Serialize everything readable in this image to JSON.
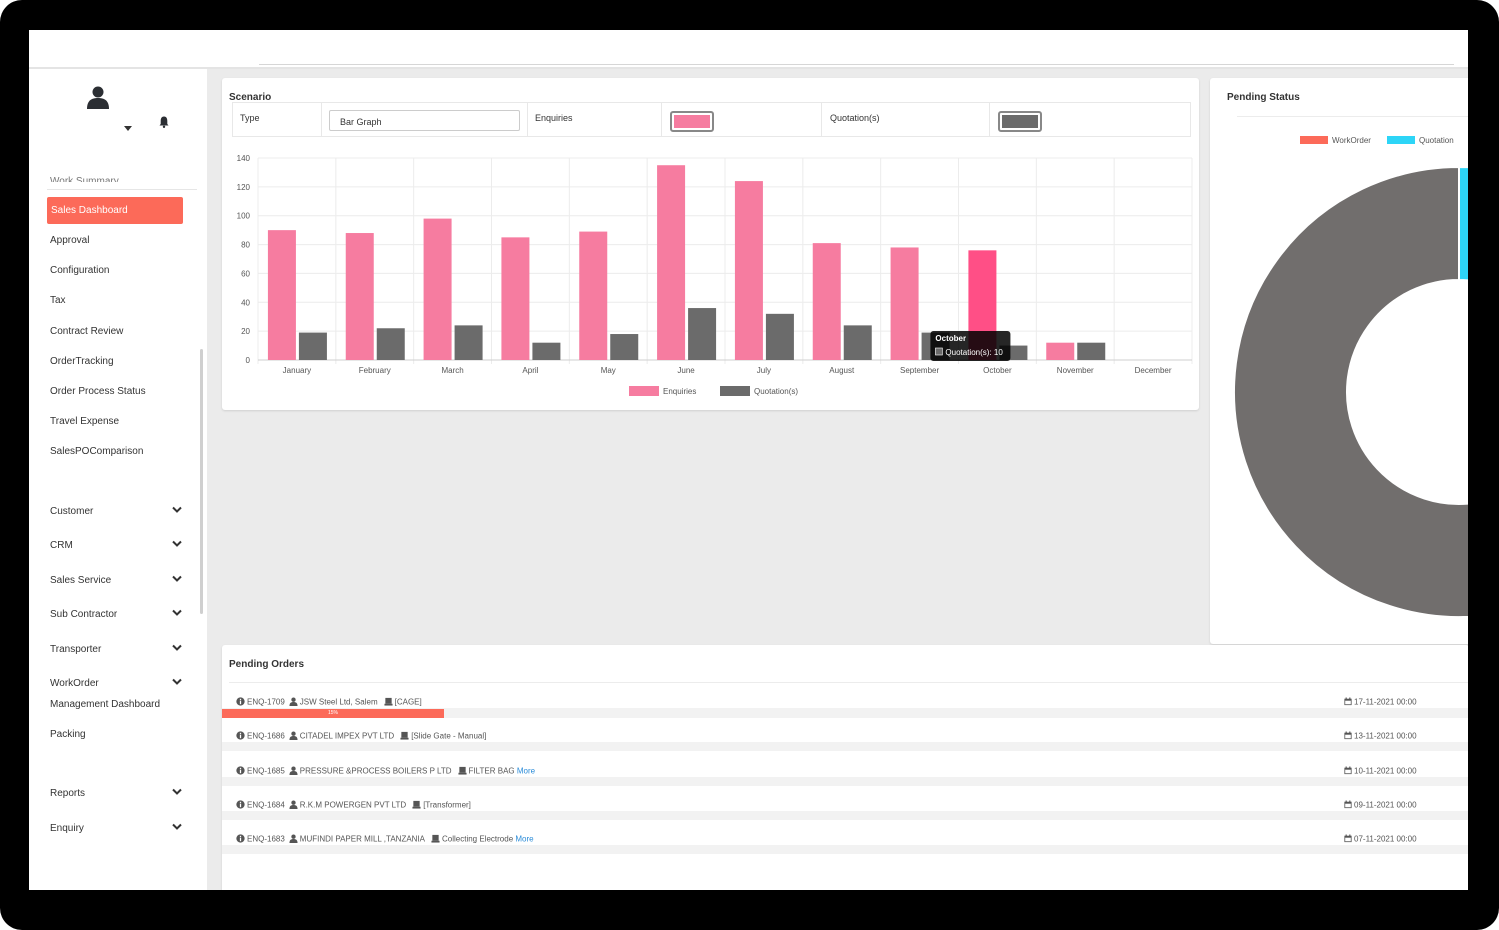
{
  "sidebar": {
    "cut_item": "Work Summary",
    "active_item": "Sales Dashboard",
    "items": [
      "Approval",
      "Configuration",
      "Tax",
      "Contract Review",
      "OrderTracking",
      "Order Process Status",
      "Travel Expense",
      "SalesPOComparison"
    ],
    "groups": [
      "Customer",
      "CRM",
      "Sales Service",
      "Sub Contractor",
      "Transporter",
      "WorkOrder"
    ],
    "workorder_children": [
      "Management Dashboard",
      "Packing"
    ],
    "groups2": [
      "Reports",
      "Enquiry"
    ]
  },
  "scenario": {
    "title": "Scenario",
    "type_label": "Type",
    "type_value": "Bar Graph",
    "enquiries_label": "Enquiries",
    "quotation_label": "Quotation(s)",
    "enquiries_color": "#f67ca0",
    "quotation_color": "#6b6b6b"
  },
  "chart_data": {
    "type": "bar",
    "categories": [
      "January",
      "February",
      "March",
      "April",
      "May",
      "June",
      "July",
      "August",
      "September",
      "October",
      "November",
      "December"
    ],
    "series": [
      {
        "name": "Enquiries",
        "values": [
          90,
          88,
          98,
          85,
          89,
          135,
          124,
          81,
          78,
          76,
          12,
          0
        ],
        "color": "#f67ca0"
      },
      {
        "name": "Quotation(s)",
        "values": [
          19,
          22,
          24,
          12,
          18,
          36,
          32,
          24,
          19,
          10,
          12,
          0
        ],
        "color": "#6b6b6b"
      }
    ],
    "ylim": [
      0,
      140
    ],
    "yticks": [
      0,
      20,
      40,
      60,
      80,
      100,
      120,
      140
    ],
    "grid": true,
    "legend": "bottom",
    "tooltip": {
      "title": "October",
      "text": "Quotation(s): 10"
    }
  },
  "pending_status": {
    "title": "Pending Status",
    "legend": [
      {
        "label": "WorkOrder",
        "color": "#fc6a59"
      },
      {
        "label": "Quotation",
        "color": "#2dd5f7"
      },
      {
        "label": "",
        "color": "#7d4fb5"
      }
    ],
    "donut": [
      {
        "name": "WorkOrder",
        "value": 0,
        "color": "#fc6a59"
      },
      {
        "name": "Quotation",
        "value": 40,
        "color": "#2dd5f7"
      },
      {
        "name": "",
        "value": 60,
        "color": "#716e6d"
      }
    ]
  },
  "pending_orders": {
    "title": "Pending Orders",
    "progress_label": "15%",
    "progress_value": 0.15,
    "rows": [
      {
        "id": "ENQ-1709",
        "customer": "JSW Steel Ltd, Salem",
        "item": "[CAGE]",
        "more": "",
        "date": "17-11-2021 00:00"
      },
      {
        "id": "ENQ-1686",
        "customer": "CITADEL IMPEX PVT LTD",
        "item": "[Slide Gate - Manual]",
        "more": "",
        "date": "13-11-2021 00:00"
      },
      {
        "id": "ENQ-1685",
        "customer": "PRESSURE &PROCESS BOILERS P LTD",
        "item": "FILTER BAG",
        "more": "More",
        "date": "10-11-2021 00:00"
      },
      {
        "id": "ENQ-1684",
        "customer": "R.K.M POWERGEN PVT LTD",
        "item": "[Transformer]",
        "more": "",
        "date": "09-11-2021 00:00"
      },
      {
        "id": "ENQ-1683",
        "customer": "MUFINDI PAPER MILL ,TANZANIA",
        "item": "Collecting Electrode",
        "more": "More",
        "date": "07-11-2021 00:00"
      }
    ]
  }
}
